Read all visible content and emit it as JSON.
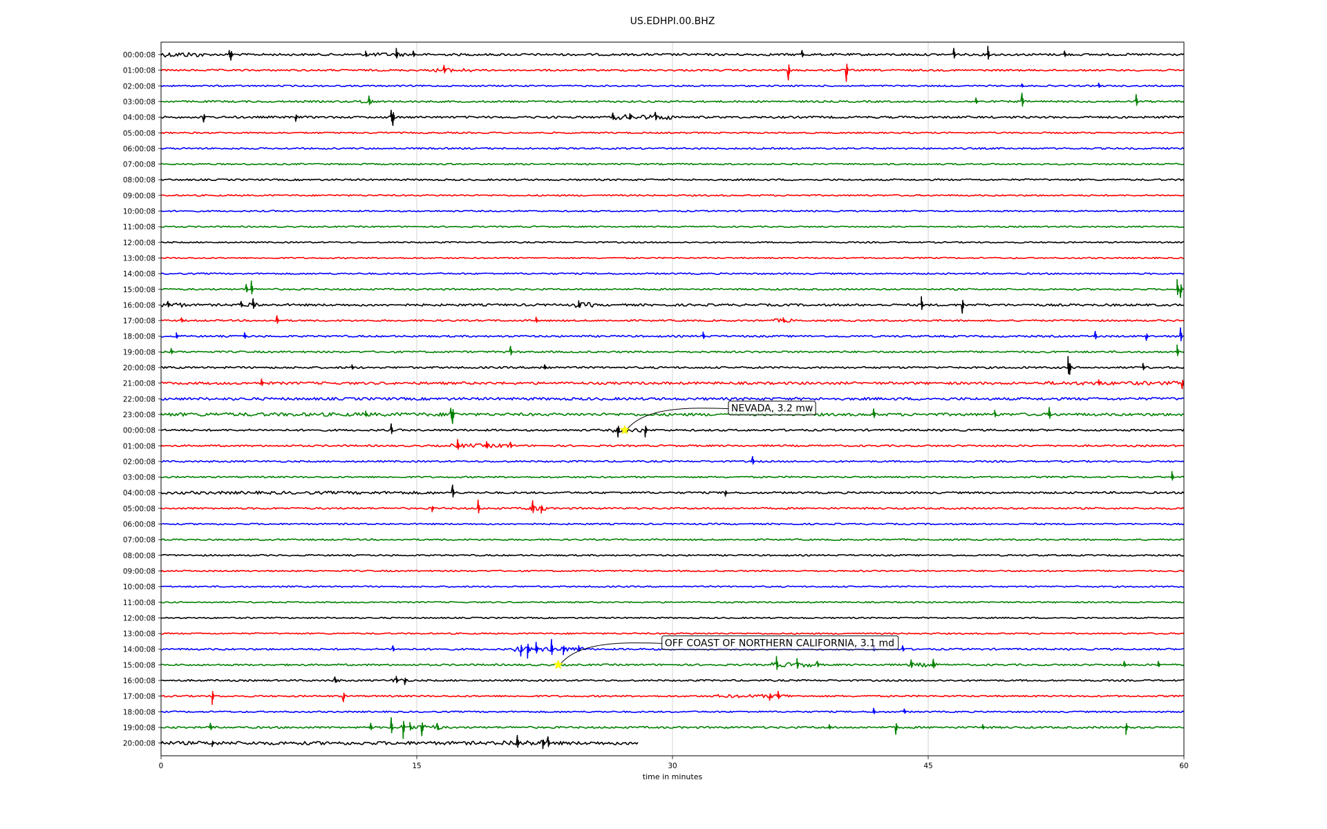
{
  "chart_data": {
    "type": "line",
    "title": "US.EDHPI.00.BHZ",
    "xlabel": "time in minutes",
    "ylabel": "",
    "xlim": [
      0,
      60
    ],
    "x_ticks": [
      0,
      15,
      30,
      45,
      60
    ],
    "grid": "vertical",
    "row_colors": [
      "#000000",
      "#ff0000",
      "#0000ff",
      "#008000"
    ],
    "row_labels": [
      "00:00:08",
      "01:00:08",
      "02:00:08",
      "03:00:08",
      "04:00:08",
      "05:00:08",
      "06:00:08",
      "07:00:08",
      "08:00:08",
      "09:00:08",
      "10:00:08",
      "11:00:08",
      "12:00:08",
      "13:00:08",
      "14:00:08",
      "15:00:08",
      "16:00:08",
      "17:00:08",
      "18:00:08",
      "19:00:08",
      "20:00:08",
      "21:00:08",
      "22:00:08",
      "23:00:08",
      "00:00:08",
      "01:00:08",
      "02:00:08",
      "03:00:08",
      "04:00:08",
      "05:00:08",
      "06:00:08",
      "07:00:08",
      "08:00:08",
      "09:00:08",
      "10:00:08",
      "11:00:08",
      "12:00:08",
      "13:00:08",
      "14:00:08",
      "15:00:08",
      "16:00:08",
      "17:00:08",
      "18:00:08",
      "19:00:08",
      "20:00:08"
    ],
    "last_row_end_minute": 28,
    "row_noise": [
      1.6,
      1.3,
      1.1,
      1.3,
      1.5,
      1.1,
      1.2,
      1.1,
      1.2,
      1.1,
      1.1,
      1.0,
      1.0,
      1.0,
      1.1,
      1.2,
      1.6,
      1.2,
      1.3,
      1.3,
      1.4,
      1.8,
      1.9,
      2.0,
      1.4,
      1.3,
      1.2,
      1.2,
      1.4,
      1.3,
      1.1,
      1.1,
      1.1,
      1.1,
      1.0,
      1.0,
      1.0,
      1.0,
      1.3,
      1.3,
      1.2,
      1.2,
      1.1,
      1.4,
      1.8
    ],
    "spikes": [
      [
        0,
        4,
        6
      ],
      [
        0,
        4.1,
        -8
      ],
      [
        0,
        12,
        5
      ],
      [
        0,
        13.8,
        9
      ],
      [
        0,
        14.8,
        5
      ],
      [
        0,
        37.6,
        6
      ],
      [
        0,
        46.5,
        9
      ],
      [
        0,
        48.5,
        12
      ],
      [
        0,
        53,
        5
      ],
      [
        1,
        16.6,
        7
      ],
      [
        1,
        36.8,
        -14
      ],
      [
        1,
        40.2,
        -16
      ],
      [
        2,
        50.5,
        3
      ],
      [
        2,
        55,
        4
      ],
      [
        3,
        12.2,
        8
      ],
      [
        3,
        47.8,
        5
      ],
      [
        3,
        50.5,
        12
      ],
      [
        3,
        57.2,
        10
      ],
      [
        4,
        2.5,
        -7
      ],
      [
        4,
        7.9,
        -6
      ],
      [
        4,
        13.5,
        10
      ],
      [
        4,
        13.6,
        -12
      ],
      [
        4,
        26.5,
        6
      ],
      [
        4,
        27.5,
        5
      ],
      [
        4,
        29,
        7
      ],
      [
        15,
        5,
        7
      ],
      [
        15,
        5.3,
        12
      ],
      [
        15,
        59.6,
        14
      ],
      [
        15,
        59.8,
        -12
      ],
      [
        16,
        0.4,
        5
      ],
      [
        16,
        4.7,
        5
      ],
      [
        16,
        5.4,
        9
      ],
      [
        16,
        24.5,
        6
      ],
      [
        16,
        44.6,
        12
      ],
      [
        16,
        47,
        -12
      ],
      [
        17,
        1.2,
        4
      ],
      [
        17,
        6.8,
        7
      ],
      [
        17,
        22,
        5
      ],
      [
        17,
        36.5,
        4
      ],
      [
        18,
        0.9,
        5
      ],
      [
        18,
        4.9,
        5
      ],
      [
        18,
        31.8,
        6
      ],
      [
        18,
        54.8,
        7
      ],
      [
        18,
        57.8,
        -6
      ],
      [
        18,
        59.8,
        12
      ],
      [
        19,
        0.6,
        5
      ],
      [
        19,
        20.5,
        8
      ],
      [
        19,
        59.6,
        10
      ],
      [
        20,
        11.2,
        4
      ],
      [
        20,
        22.5,
        4
      ],
      [
        20,
        53.2,
        16
      ],
      [
        20,
        53.3,
        -10
      ],
      [
        20,
        57.6,
        6
      ],
      [
        21,
        5.9,
        6
      ],
      [
        21,
        55,
        5
      ],
      [
        21,
        59.9,
        -8
      ],
      [
        23,
        12,
        5
      ],
      [
        23,
        17,
        9
      ],
      [
        23,
        17.1,
        -13
      ],
      [
        23,
        41.8,
        8
      ],
      [
        23,
        48.9,
        6
      ],
      [
        23,
        52.1,
        10
      ],
      [
        24,
        13.5,
        9
      ],
      [
        24,
        26.8,
        -10
      ],
      [
        24,
        28.4,
        -10
      ],
      [
        25,
        17.4,
        9
      ],
      [
        25,
        19.1,
        6
      ],
      [
        25,
        20.5,
        5
      ],
      [
        26,
        34.7,
        7
      ],
      [
        27,
        59.3,
        8
      ],
      [
        28,
        17.1,
        11
      ],
      [
        28,
        33.1,
        -5
      ],
      [
        29,
        15.9,
        -5
      ],
      [
        29,
        18.6,
        12
      ],
      [
        29,
        21.8,
        11
      ],
      [
        29,
        22.3,
        -7
      ],
      [
        38,
        13.6,
        5
      ],
      [
        38,
        21.1,
        -10
      ],
      [
        38,
        21.5,
        -13
      ],
      [
        38,
        22.0,
        10
      ],
      [
        38,
        22.9,
        14
      ],
      [
        38,
        23.6,
        -8
      ],
      [
        38,
        24.5,
        5
      ],
      [
        38,
        41.8,
        4
      ],
      [
        38,
        43.5,
        5
      ],
      [
        39,
        36.1,
        12
      ],
      [
        39,
        37.3,
        9
      ],
      [
        39,
        38.5,
        5
      ],
      [
        39,
        44,
        7
      ],
      [
        39,
        45.3,
        8
      ],
      [
        39,
        56.5,
        5
      ],
      [
        39,
        58.5,
        5
      ],
      [
        40,
        10.2,
        5
      ],
      [
        40,
        13.8,
        6
      ],
      [
        40,
        14.3,
        -6
      ],
      [
        41,
        3,
        -12
      ],
      [
        41,
        10.7,
        -8
      ],
      [
        41,
        35.7,
        -6
      ],
      [
        41,
        36.2,
        7
      ],
      [
        42,
        41.8,
        5
      ],
      [
        42,
        43.6,
        4
      ],
      [
        43,
        2.9,
        6
      ],
      [
        43,
        12.3,
        6
      ],
      [
        43,
        13.5,
        14
      ],
      [
        43,
        14.2,
        -16
      ],
      [
        43,
        14.6,
        7
      ],
      [
        43,
        15.3,
        -12
      ],
      [
        43,
        16.2,
        6
      ],
      [
        43,
        39.2,
        4
      ],
      [
        43,
        43.1,
        -10
      ],
      [
        43,
        48.2,
        4
      ],
      [
        43,
        56.6,
        -10
      ],
      [
        44,
        3,
        -5
      ],
      [
        44,
        20.9,
        11
      ],
      [
        44,
        22.4,
        -8
      ],
      [
        44,
        22.7,
        9
      ]
    ],
    "bursts": [
      [
        0,
        0,
        2.5,
        2.2
      ],
      [
        0,
        12,
        14.5,
        1.6
      ],
      [
        1,
        16,
        18.3,
        1.7
      ],
      [
        3,
        11.5,
        12.5,
        1.8
      ],
      [
        4,
        26.5,
        30,
        2.2
      ],
      [
        16,
        0,
        1.5,
        2
      ],
      [
        16,
        4.8,
        5.8,
        2.2
      ],
      [
        16,
        24.2,
        25.3,
        2.2
      ],
      [
        17,
        36,
        37,
        1.6
      ],
      [
        20,
        22,
        23,
        1.8
      ],
      [
        21,
        52,
        60,
        1.6
      ],
      [
        22,
        0,
        60,
        1.1
      ],
      [
        23,
        0,
        17.4,
        1.6
      ],
      [
        24,
        26.5,
        28.5,
        2
      ],
      [
        25,
        17,
        20.5,
        1.7
      ],
      [
        28,
        0,
        16,
        1.3
      ],
      [
        29,
        21.3,
        22.8,
        2
      ],
      [
        38,
        20.7,
        24.8,
        2
      ],
      [
        39,
        35.8,
        38.6,
        2
      ],
      [
        39,
        43.8,
        45.6,
        1.8
      ],
      [
        40,
        10,
        10.5,
        1.5
      ],
      [
        40,
        13.5,
        14.5,
        1.8
      ],
      [
        41,
        32.5,
        37,
        1.5
      ],
      [
        43,
        14,
        16.5,
        2
      ],
      [
        44,
        0,
        28,
        1.5
      ],
      [
        44,
        20,
        22.8,
        2.4
      ]
    ],
    "annotations": [
      {
        "text": "NEVADA, 3.2 mw",
        "row": 24,
        "x": 27.2
      },
      {
        "text": "OFF COAST OF NORTHERN CALIFORNIA, 3.1 md",
        "row": 39,
        "x": 23.3
      }
    ]
  }
}
